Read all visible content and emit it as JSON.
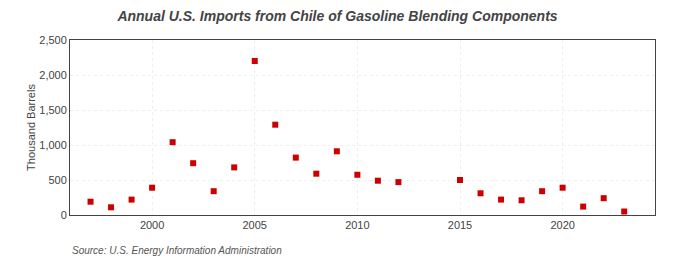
{
  "chart_data": {
    "type": "scatter",
    "title": "Annual U.S. Imports from Chile of Gasoline Blending Components",
    "ylabel": "Thousand Barrels",
    "source": "Source: U.S. Energy Information Administration",
    "x": [
      1997,
      1998,
      1999,
      2000,
      2001,
      2002,
      2003,
      2004,
      2005,
      2006,
      2007,
      2008,
      2009,
      2010,
      2011,
      2012,
      2015,
      2016,
      2017,
      2018,
      2019,
      2020,
      2021,
      2022,
      2023
    ],
    "values": [
      190,
      110,
      220,
      390,
      1040,
      740,
      340,
      680,
      2200,
      1290,
      820,
      590,
      910,
      575,
      490,
      470,
      500,
      310,
      220,
      210,
      340,
      390,
      120,
      240,
      50
    ],
    "color": "#cc0000",
    "marker": "square",
    "xlim": [
      1996,
      2024.5
    ],
    "xticks": [
      2000,
      2005,
      2010,
      2015,
      2020
    ],
    "ylim": [
      0,
      2500
    ],
    "yticks": [
      0,
      500,
      {
        "value": 1000,
        "label": "1,000"
      },
      {
        "value": 1500,
        "label": "1,500"
      },
      {
        "value": 2000,
        "label": "2,000"
      },
      {
        "value": 2500,
        "label": "2,500"
      }
    ],
    "grid": true
  }
}
